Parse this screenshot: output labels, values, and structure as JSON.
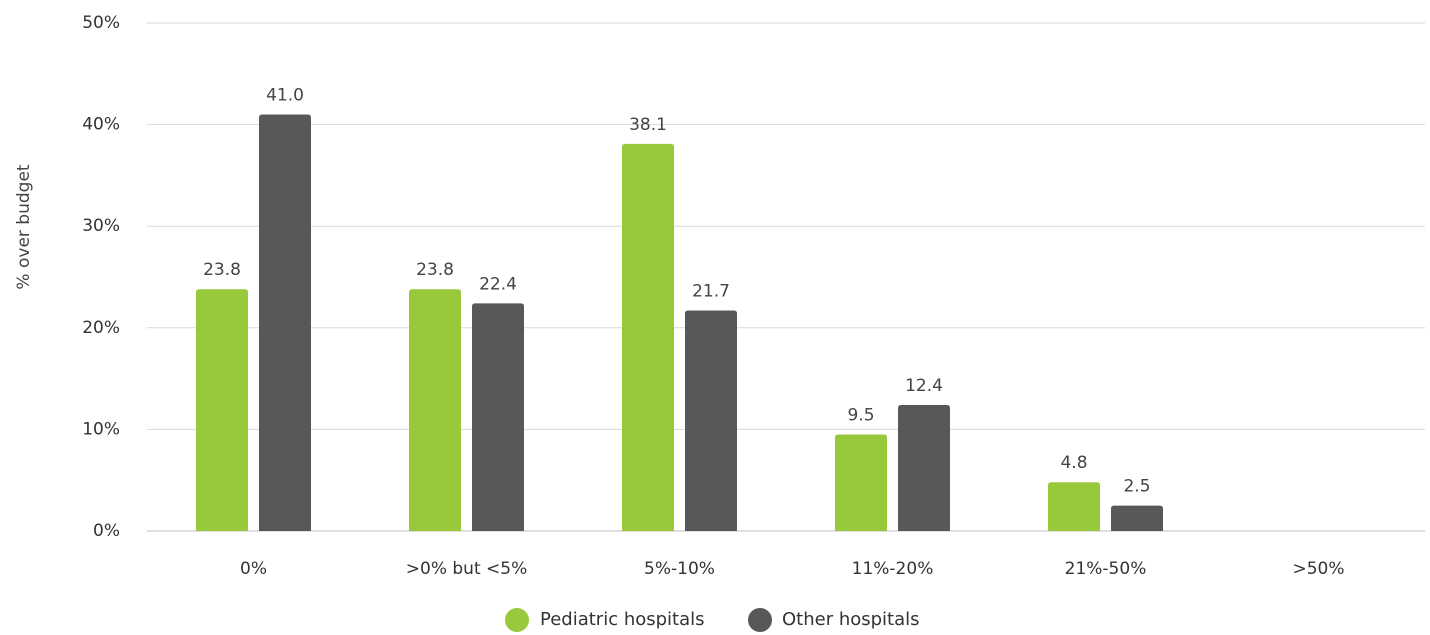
{
  "chart_data": {
    "type": "bar",
    "title": "",
    "xlabel": "",
    "ylabel": "% over budget",
    "categories": [
      "0%",
      ">0% but <5%",
      "5%-10%",
      "11%-20%",
      "21%-50%",
      ">50%"
    ],
    "series": [
      {
        "name": "Pediatric hospitals",
        "color": "#98c93c",
        "values": [
          23.8,
          23.8,
          38.1,
          9.5,
          4.8,
          null
        ]
      },
      {
        "name": "Other hospitals",
        "color": "#58585a",
        "values": [
          41.0,
          22.4,
          21.7,
          12.4,
          2.5,
          null
        ]
      }
    ],
    "ylim": [
      0,
      50
    ],
    "yticks": [
      0,
      10,
      20,
      30,
      40,
      50
    ],
    "ytick_labels": [
      "0%",
      "10%",
      "20%",
      "30%",
      "40%",
      "50%"
    ],
    "grid": true,
    "legend": "bottom-center"
  }
}
